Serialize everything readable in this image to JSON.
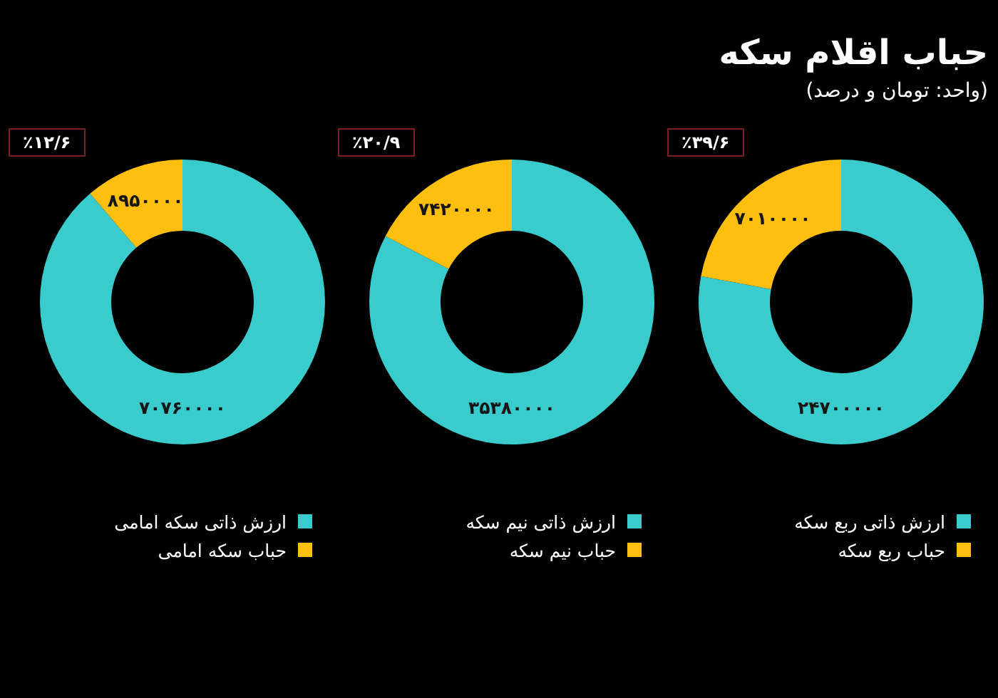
{
  "chart_data": [
    {
      "type": "donut",
      "title": "حباب اقلام سکه",
      "subtitle": "(واحد: تومان و درصد)",
      "categories": [
        "ارزش ذاتی ربع سکه",
        "حباب ربع سکه"
      ],
      "values": [
        24700000,
        7010000
      ],
      "colors": [
        "#3acccc",
        "#fcbf10"
      ],
      "value_labels": [
        "۲۴۷۰۰۰۰۰",
        "۷۰۱۰۰۰۰"
      ],
      "annotations": [
        "٪۳۹/۶"
      ],
      "legend": "bottom"
    },
    {
      "type": "donut",
      "categories": [
        "ارزش ذاتی نیم سکه",
        "حباب نیم سکه"
      ],
      "values": [
        35380000,
        7420000
      ],
      "colors": [
        "#3acccc",
        "#fcbf10"
      ],
      "value_labels": [
        "۳۵۳۸۰۰۰۰",
        "۷۴۲۰۰۰۰"
      ],
      "annotations": [
        "٪۲۰/۹"
      ],
      "legend": "bottom"
    },
    {
      "type": "donut",
      "categories": [
        "ارزش ذاتی سکه امامی",
        "حباب سکه امامی"
      ],
      "values": [
        70760000,
        8950000
      ],
      "colors": [
        "#3acccc",
        "#fcbf10"
      ],
      "value_labels": [
        "۷۰۷۶۰۰۰۰",
        "۸۹۵۰۰۰۰"
      ],
      "annotations": [
        "٪۱۲/۶"
      ],
      "legend": "bottom"
    }
  ]
}
